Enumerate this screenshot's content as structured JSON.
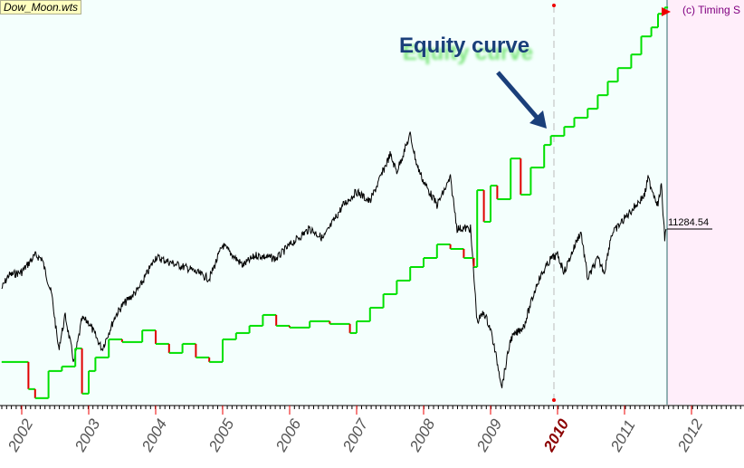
{
  "window": {
    "title": "Dow_Moon.wts",
    "copyright": "(c) Timing S"
  },
  "annotation": {
    "text": "Equity curve"
  },
  "colors": {
    "background": "#f4fffd",
    "future_zone": "#ffeefa",
    "price": "#000000",
    "equity_up": "#00e000",
    "equity_down": "#e00000",
    "annotation": "#1a3f7a"
  },
  "chart_data": {
    "type": "line",
    "xlabel": "",
    "ylabel": "",
    "x_tick_labels": [
      "2002",
      "2003",
      "2004",
      "2005",
      "2006",
      "2007",
      "2008",
      "2009",
      "2010",
      "2011",
      "2012"
    ],
    "highlighted_tick": "2010",
    "last_price_label": "11284.54",
    "grid": false,
    "series": [
      {
        "kind": "price",
        "points": [
          [
            2001.7,
            9500
          ],
          [
            2001.8,
            9900
          ],
          [
            2002.0,
            10000
          ],
          [
            2002.2,
            10500
          ],
          [
            2002.3,
            10400
          ],
          [
            2002.45,
            9300
          ],
          [
            2002.55,
            7700
          ],
          [
            2002.65,
            8700
          ],
          [
            2002.78,
            7300
          ],
          [
            2002.9,
            8600
          ],
          [
            2003.0,
            8500
          ],
          [
            2003.2,
            7700
          ],
          [
            2003.4,
            8700
          ],
          [
            2003.5,
            9000
          ],
          [
            2003.75,
            9500
          ],
          [
            2004.0,
            10450
          ],
          [
            2004.2,
            10300
          ],
          [
            2004.5,
            10100
          ],
          [
            2004.8,
            9800
          ],
          [
            2005.0,
            10800
          ],
          [
            2005.3,
            10200
          ],
          [
            2005.5,
            10500
          ],
          [
            2005.8,
            10400
          ],
          [
            2006.0,
            10800
          ],
          [
            2006.3,
            11300
          ],
          [
            2006.5,
            11000
          ],
          [
            2006.8,
            12000
          ],
          [
            2007.0,
            12400
          ],
          [
            2007.2,
            12100
          ],
          [
            2007.5,
            13500
          ],
          [
            2007.6,
            13000
          ],
          [
            2007.8,
            14100
          ],
          [
            2007.9,
            13200
          ],
          [
            2008.0,
            12700
          ],
          [
            2008.2,
            12000
          ],
          [
            2008.4,
            12800
          ],
          [
            2008.5,
            11300
          ],
          [
            2008.7,
            11300
          ],
          [
            2008.8,
            8500
          ],
          [
            2008.9,
            8800
          ],
          [
            2009.0,
            8300
          ],
          [
            2009.17,
            6600
          ],
          [
            2009.3,
            8000
          ],
          [
            2009.5,
            8400
          ],
          [
            2009.7,
            9700
          ],
          [
            2009.9,
            10400
          ],
          [
            2010.0,
            10500
          ],
          [
            2010.1,
            10000
          ],
          [
            2010.3,
            11000
          ],
          [
            2010.35,
            11200
          ],
          [
            2010.45,
            9800
          ],
          [
            2010.6,
            10400
          ],
          [
            2010.7,
            10000
          ],
          [
            2010.8,
            11100
          ],
          [
            2011.0,
            11600
          ],
          [
            2011.3,
            12300
          ],
          [
            2011.35,
            12800
          ],
          [
            2011.5,
            12000
          ],
          [
            2011.55,
            12600
          ],
          [
            2011.6,
            11000
          ],
          [
            2011.62,
            11284.54
          ]
        ]
      },
      {
        "kind": "equity",
        "points": [
          [
            2001.7,
            7315
          ],
          [
            2002.1,
            6505
          ],
          [
            2002.2,
            6235
          ],
          [
            2002.4,
            7045
          ],
          [
            2002.6,
            7180
          ],
          [
            2002.8,
            7720
          ],
          [
            2002.9,
            6370
          ],
          [
            2003.0,
            7045
          ],
          [
            2003.1,
            7450
          ],
          [
            2003.3,
            7990
          ],
          [
            2003.5,
            7909
          ],
          [
            2003.8,
            8260
          ],
          [
            2004.0,
            7855
          ],
          [
            2004.2,
            7585
          ],
          [
            2004.4,
            7855
          ],
          [
            2004.6,
            7450
          ],
          [
            2004.8,
            7315
          ],
          [
            2005.0,
            7990
          ],
          [
            2005.2,
            8179
          ],
          [
            2005.4,
            8395
          ],
          [
            2005.6,
            8719
          ],
          [
            2005.8,
            8395
          ],
          [
            2006.0,
            8341
          ],
          [
            2006.3,
            8530
          ],
          [
            2006.6,
            8449
          ],
          [
            2006.9,
            8179
          ],
          [
            2007.0,
            8530
          ],
          [
            2007.2,
            8935
          ],
          [
            2007.4,
            9340
          ],
          [
            2007.6,
            9745
          ],
          [
            2007.8,
            10150
          ],
          [
            2008.0,
            10420
          ],
          [
            2008.2,
            10825
          ],
          [
            2008.4,
            10690
          ],
          [
            2008.6,
            10420
          ],
          [
            2008.75,
            10150
          ],
          [
            2008.8,
            12445
          ],
          [
            2008.9,
            11500
          ],
          [
            2009.0,
            12580
          ],
          [
            2009.1,
            12175
          ],
          [
            2009.3,
            13390
          ],
          [
            2009.45,
            12310
          ],
          [
            2009.6,
            13120
          ],
          [
            2009.8,
            13795
          ],
          [
            2009.9,
            14065
          ],
          [
            2010.1,
            14335
          ],
          [
            2010.25,
            14605
          ],
          [
            2010.45,
            14875
          ],
          [
            2010.6,
            15280
          ],
          [
            2010.75,
            15685
          ],
          [
            2010.9,
            16090
          ],
          [
            2011.1,
            16495
          ],
          [
            2011.25,
            17035
          ],
          [
            2011.4,
            17305
          ],
          [
            2011.5,
            17710
          ],
          [
            2011.6,
            17899
          ]
        ]
      }
    ]
  }
}
